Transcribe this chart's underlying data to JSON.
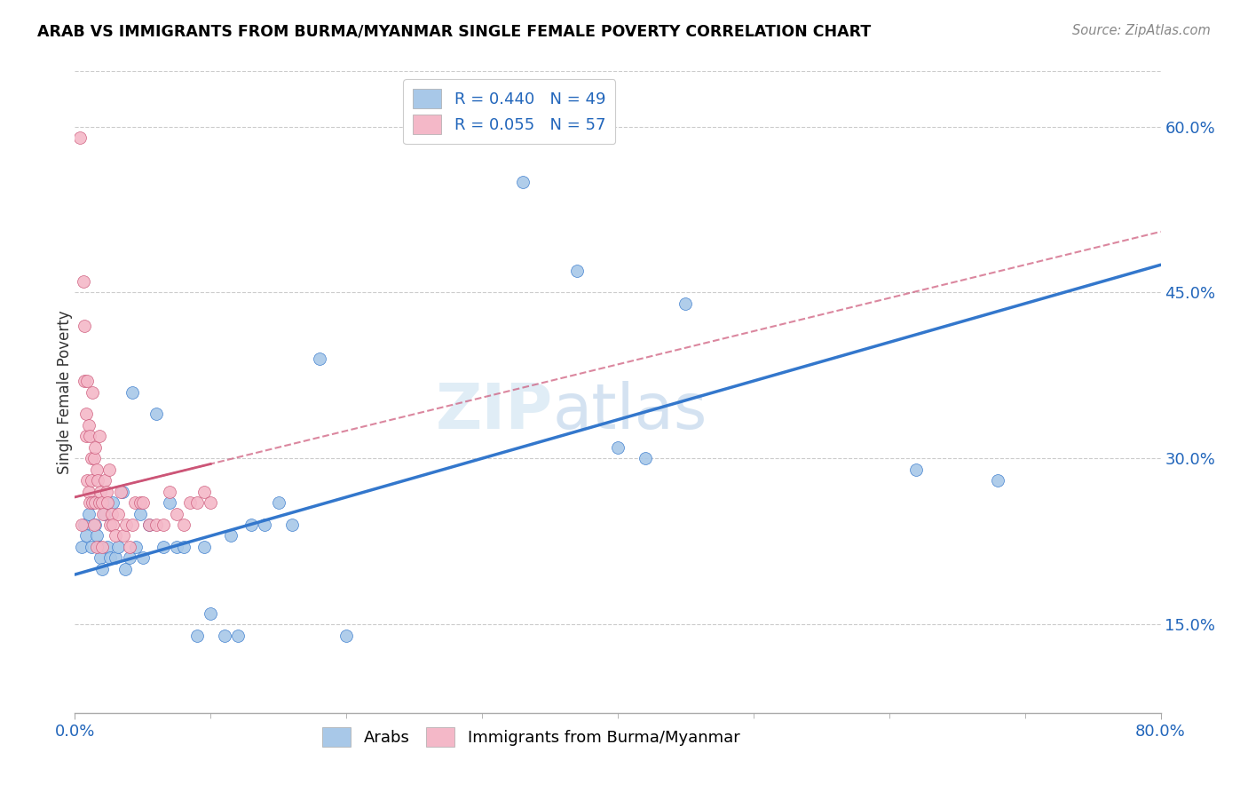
{
  "title": "ARAB VS IMMIGRANTS FROM BURMA/MYANMAR SINGLE FEMALE POVERTY CORRELATION CHART",
  "source": "Source: ZipAtlas.com",
  "ylabel": "Single Female Poverty",
  "right_yticks": [
    "60.0%",
    "45.0%",
    "30.0%",
    "15.0%"
  ],
  "right_ytick_vals": [
    0.6,
    0.45,
    0.3,
    0.15
  ],
  "legend_arab": "R = 0.440   N = 49",
  "legend_burma": "R = 0.055   N = 57",
  "arab_color": "#a8c8e8",
  "burma_color": "#f4b8c8",
  "arab_line_color": "#3377cc",
  "burma_line_color": "#cc5577",
  "watermark": "ZIPatlas",
  "xlim": [
    0.0,
    0.8
  ],
  "ylim": [
    0.07,
    0.65
  ],
  "arab_x": [
    0.005,
    0.007,
    0.008,
    0.01,
    0.012,
    0.013,
    0.015,
    0.016,
    0.018,
    0.019,
    0.02,
    0.022,
    0.024,
    0.026,
    0.028,
    0.03,
    0.032,
    0.035,
    0.037,
    0.04,
    0.042,
    0.045,
    0.048,
    0.05,
    0.055,
    0.06,
    0.065,
    0.07,
    0.075,
    0.08,
    0.09,
    0.095,
    0.1,
    0.11,
    0.115,
    0.12,
    0.13,
    0.14,
    0.15,
    0.16,
    0.18,
    0.2,
    0.33,
    0.37,
    0.4,
    0.42,
    0.45,
    0.62,
    0.68
  ],
  "arab_y": [
    0.22,
    0.24,
    0.23,
    0.25,
    0.22,
    0.26,
    0.24,
    0.23,
    0.22,
    0.21,
    0.2,
    0.25,
    0.22,
    0.21,
    0.26,
    0.21,
    0.22,
    0.27,
    0.2,
    0.21,
    0.36,
    0.22,
    0.25,
    0.21,
    0.24,
    0.34,
    0.22,
    0.26,
    0.22,
    0.22,
    0.14,
    0.22,
    0.16,
    0.14,
    0.23,
    0.14,
    0.24,
    0.24,
    0.26,
    0.24,
    0.39,
    0.14,
    0.55,
    0.47,
    0.31,
    0.3,
    0.44,
    0.29,
    0.28
  ],
  "burma_x": [
    0.004,
    0.005,
    0.006,
    0.007,
    0.007,
    0.008,
    0.008,
    0.009,
    0.009,
    0.01,
    0.01,
    0.011,
    0.011,
    0.012,
    0.012,
    0.013,
    0.013,
    0.014,
    0.014,
    0.015,
    0.015,
    0.016,
    0.016,
    0.017,
    0.018,
    0.018,
    0.019,
    0.02,
    0.02,
    0.021,
    0.022,
    0.023,
    0.024,
    0.025,
    0.026,
    0.027,
    0.028,
    0.03,
    0.032,
    0.034,
    0.036,
    0.038,
    0.04,
    0.042,
    0.044,
    0.048,
    0.05,
    0.055,
    0.06,
    0.065,
    0.07,
    0.075,
    0.08,
    0.085,
    0.09,
    0.095,
    0.1
  ],
  "burma_y": [
    0.59,
    0.24,
    0.46,
    0.37,
    0.42,
    0.32,
    0.34,
    0.37,
    0.28,
    0.33,
    0.27,
    0.32,
    0.26,
    0.28,
    0.3,
    0.26,
    0.36,
    0.3,
    0.24,
    0.31,
    0.26,
    0.29,
    0.22,
    0.28,
    0.26,
    0.32,
    0.27,
    0.22,
    0.26,
    0.25,
    0.28,
    0.27,
    0.26,
    0.29,
    0.24,
    0.25,
    0.24,
    0.23,
    0.25,
    0.27,
    0.23,
    0.24,
    0.22,
    0.24,
    0.26,
    0.26,
    0.26,
    0.24,
    0.24,
    0.24,
    0.27,
    0.25,
    0.24,
    0.26,
    0.26,
    0.27,
    0.26
  ],
  "arab_line_x": [
    0.0,
    0.8
  ],
  "arab_line_y": [
    0.195,
    0.475
  ],
  "burma_line_x": [
    0.0,
    0.1
  ],
  "burma_line_y": [
    0.265,
    0.295
  ]
}
